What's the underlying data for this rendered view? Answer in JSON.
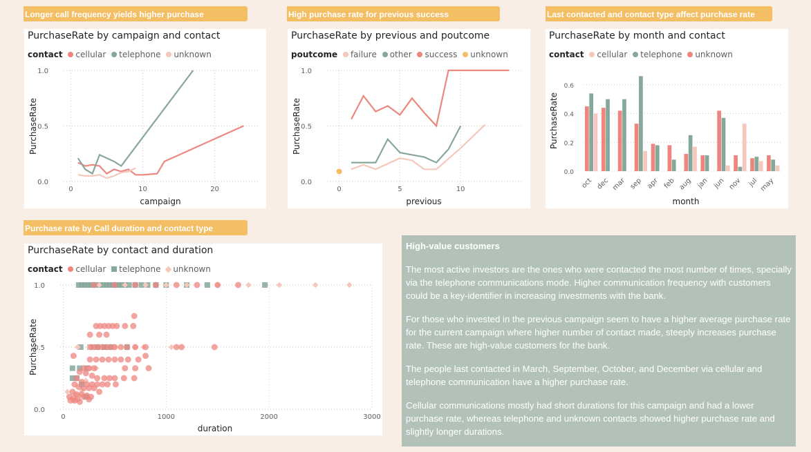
{
  "colors": {
    "cellular": "#ee8680",
    "telephone": "#85a89b",
    "unknown": "#f4c8bc",
    "failure": "#f4c8bc",
    "other": "#85a89b",
    "success": "#ee8680",
    "unknown_pout": "#f4be64",
    "tab": "#f4be64",
    "panel": "#b3c2b8"
  },
  "tabs": [
    "Longer call frequency yields higher purchase",
    "High purchase rate for previous success",
    "Last contacted and contact type affect purchase rate",
    "Purchase rate by Call duration and contact type"
  ],
  "insights": {
    "title": "High-value customers",
    "paragraphs": [
      "The most active investors are the ones who were contacted the most number of times, specially via the telephone communications mode. Higher communication frequency with customers could be a key-identifier in increasing investments with the bank.",
      "For those who invested in the previous campaign seem to have a higher average purchase rate for the current campaign where higher number of contact made, steeply increases purchase rate. These are high-value customers for the bank.",
      "The people last contacted in March, September, October, and December via cellular and telephone communication have a higher purchase rate.",
      "Cellular communications mostly had short durations for this campaign and had a lower purchase rate, whereas telephone and unknown contacts showed higher purchase rate and slightly longer durations."
    ]
  },
  "chart_data": [
    {
      "type": "line",
      "title": "PurchaseRate by campaign and contact",
      "legend_title": "contact",
      "xlabel": "campaign",
      "ylabel": "PurchaseRate",
      "xlim": [
        -1,
        26
      ],
      "ylim": [
        0,
        1
      ],
      "xticks": [
        0,
        10,
        20
      ],
      "yticks": [
        {
          "v": 0,
          "t": "0.0"
        },
        {
          "v": 0.5,
          "t": "0.5"
        },
        {
          "v": 1,
          "t": "1.0"
        }
      ],
      "series": [
        {
          "name": "cellular",
          "points": [
            [
              1,
              0.17
            ],
            [
              2,
              0.14
            ],
            [
              3,
              0.15
            ],
            [
              4,
              0.14
            ],
            [
              5,
              0.07
            ],
            [
              6,
              0.11
            ],
            [
              7,
              0.09
            ],
            [
              8,
              0.11
            ],
            [
              9,
              0.06
            ],
            [
              10,
              0.06
            ],
            [
              12,
              0.07
            ],
            [
              13,
              0.18
            ],
            [
              24,
              0.5
            ]
          ]
        },
        {
          "name": "telephone",
          "points": [
            [
              1,
              0.21
            ],
            [
              2,
              0.11
            ],
            [
              3,
              0.07
            ],
            [
              4,
              0.24
            ],
            [
              6,
              0.18
            ],
            [
              7,
              0.14
            ],
            [
              17,
              1.0
            ]
          ]
        },
        {
          "name": "unknown",
          "points": [
            [
              1,
              0.06
            ],
            [
              2,
              0.05
            ],
            [
              3,
              0.05
            ],
            [
              4,
              0.06
            ],
            [
              5,
              0.03
            ],
            [
              6,
              0.05
            ],
            [
              7,
              0.08
            ],
            [
              8,
              0.09
            ],
            [
              9,
              0.12
            ]
          ]
        }
      ]
    },
    {
      "type": "line",
      "title": "PurchaseRate by previous and poutcome",
      "legend_title": "poutcome",
      "xlabel": "previous",
      "ylabel": "PurchaseRate",
      "xlim": [
        -1,
        15
      ],
      "ylim": [
        0,
        1
      ],
      "xticks": [
        0,
        5,
        10
      ],
      "yticks": [
        {
          "v": 0,
          "t": "0.0"
        },
        {
          "v": 0.5,
          "t": "0.5"
        },
        {
          "v": 1,
          "t": "1.0"
        }
      ],
      "series": [
        {
          "name": "failure",
          "points": [
            [
              1,
              0.11
            ],
            [
              2,
              0.15
            ],
            [
              3,
              0.11
            ],
            [
              4,
              0.16
            ],
            [
              5,
              0.21
            ],
            [
              6,
              0.19
            ],
            [
              7,
              0.11
            ],
            [
              8,
              0.11
            ],
            [
              10,
              0.3
            ],
            [
              12,
              0.51
            ]
          ]
        },
        {
          "name": "other",
          "points": [
            [
              1,
              0.17
            ],
            [
              2,
              0.17
            ],
            [
              3,
              0.17
            ],
            [
              4,
              0.38
            ],
            [
              5,
              0.26
            ],
            [
              6,
              0.24
            ],
            [
              7,
              0.22
            ],
            [
              8,
              0.17
            ],
            [
              9,
              0.29
            ],
            [
              10,
              0.5
            ]
          ]
        },
        {
          "name": "success",
          "points": [
            [
              1,
              0.56
            ],
            [
              2,
              0.77
            ],
            [
              3,
              0.63
            ],
            [
              4,
              0.68
            ],
            [
              5,
              0.6
            ],
            [
              6,
              0.75
            ],
            [
              7,
              0.62
            ],
            [
              8,
              0.5
            ],
            [
              9,
              1.0
            ],
            [
              14,
              1.0
            ]
          ]
        },
        {
          "name": "unknown",
          "points": [
            [
              0,
              0.09
            ]
          ]
        }
      ]
    },
    {
      "type": "bar",
      "title": "PurchaseRate by month and contact",
      "legend_title": "contact",
      "xlabel": "month",
      "ylabel": "PurchaseRate",
      "ylim": [
        0,
        0.7
      ],
      "yticks": [
        {
          "v": 0,
          "t": "0.0"
        },
        {
          "v": 0.2,
          "t": "0.2"
        },
        {
          "v": 0.4,
          "t": "0.4"
        },
        {
          "v": 0.6,
          "t": "0.6"
        }
      ],
      "categories": [
        "oct",
        "dec",
        "mar",
        "sep",
        "apr",
        "feb",
        "aug",
        "jan",
        "jun",
        "nov",
        "jul",
        "may"
      ],
      "series": [
        {
          "name": "cellular",
          "values": [
            0.45,
            0.44,
            0.42,
            0.33,
            0.19,
            0.18,
            0.12,
            0.11,
            0.42,
            0.11,
            0.09,
            0.11
          ]
        },
        {
          "name": "telephone",
          "values": [
            0.54,
            0.5,
            0.5,
            0.66,
            0.18,
            0.08,
            0.25,
            0.11,
            0.37,
            0.03,
            0.1,
            0.08
          ]
        },
        {
          "name": "unknown",
          "values": [
            0.4,
            0,
            0,
            0.14,
            0,
            0,
            0.17,
            0,
            0.04,
            0.33,
            0.07,
            0.04
          ]
        }
      ]
    },
    {
      "type": "scatter",
      "title": "PurchaseRate by contact and duration",
      "legend_title": "contact",
      "xlabel": "duration",
      "ylabel": "PurchaseRate",
      "xlim": [
        -30,
        3000
      ],
      "ylim": [
        0,
        1
      ],
      "xticks": [
        {
          "v": 0,
          "t": "0"
        },
        {
          "v": 1000,
          "t": "1000"
        },
        {
          "v": 2000,
          "t": "2000"
        },
        {
          "v": 3000,
          "t": "3000"
        }
      ],
      "yticks": [
        {
          "v": 0,
          "t": "0.0"
        },
        {
          "v": 0.5,
          "t": "0.5"
        },
        {
          "v": 1,
          "t": "1.0"
        }
      ],
      "series": [
        {
          "name": "telephone",
          "points": [
            [
              150,
              1
            ],
            [
              180,
              1
            ],
            [
              210,
              1
            ],
            [
              240,
              1
            ],
            [
              270,
              1
            ],
            [
              300,
              1
            ],
            [
              330,
              1
            ],
            [
              360,
              1
            ],
            [
              390,
              1
            ],
            [
              420,
              1
            ],
            [
              450,
              1
            ],
            [
              480,
              1
            ],
            [
              510,
              1
            ],
            [
              540,
              1
            ],
            [
              570,
              1
            ],
            [
              600,
              1
            ],
            [
              640,
              1
            ],
            [
              700,
              1
            ],
            [
              760,
              1
            ],
            [
              820,
              1
            ],
            [
              900,
              1
            ],
            [
              1000,
              1
            ],
            [
              1200,
              1
            ],
            [
              1400,
              1
            ],
            [
              1960,
              1
            ],
            [
              170,
              0.5
            ],
            [
              260,
              0.5
            ],
            [
              330,
              0.5
            ],
            [
              400,
              0.5
            ],
            [
              460,
              0.5
            ],
            [
              620,
              0.5
            ],
            [
              90,
              0.33
            ],
            [
              160,
              0.33
            ],
            [
              230,
              0.33
            ],
            [
              90,
              0.25
            ],
            [
              130,
              0.25
            ],
            [
              180,
              0.2
            ],
            [
              220,
              0.1
            ]
          ]
        },
        {
          "name": "cellular",
          "points": [
            [
              300,
              1
            ],
            [
              500,
              1
            ],
            [
              700,
              1
            ],
            [
              900,
              1
            ],
            [
              1100,
              1
            ],
            [
              1300,
              1
            ],
            [
              1500,
              1
            ],
            [
              1700,
              1
            ],
            [
              320,
              0.67
            ],
            [
              360,
              0.67
            ],
            [
              400,
              0.67
            ],
            [
              440,
              0.67
            ],
            [
              480,
              0.67
            ],
            [
              520,
              0.67
            ],
            [
              600,
              0.67
            ],
            [
              680,
              0.67
            ],
            [
              260,
              0.6
            ],
            [
              350,
              0.6
            ],
            [
              420,
              0.6
            ],
            [
              270,
              0.5
            ],
            [
              300,
              0.5
            ],
            [
              340,
              0.5
            ],
            [
              380,
              0.5
            ],
            [
              420,
              0.5
            ],
            [
              460,
              0.5
            ],
            [
              500,
              0.5
            ],
            [
              560,
              0.5
            ],
            [
              620,
              0.5
            ],
            [
              700,
              0.5
            ],
            [
              800,
              0.5
            ],
            [
              1100,
              0.5
            ],
            [
              1150,
              0.5
            ],
            [
              1470,
              0.5
            ],
            [
              260,
              0.4
            ],
            [
              320,
              0.4
            ],
            [
              380,
              0.4
            ],
            [
              440,
              0.4
            ],
            [
              500,
              0.4
            ],
            [
              560,
              0.4
            ],
            [
              630,
              0.4
            ],
            [
              730,
              0.4
            ],
            [
              800,
              0.43
            ],
            [
              100,
              0.43
            ],
            [
              600,
              0.33
            ],
            [
              700,
              0.33
            ],
            [
              830,
              0.33
            ],
            [
              200,
              0.33
            ],
            [
              250,
              0.33
            ],
            [
              300,
              0.33
            ],
            [
              160,
              0.3
            ],
            [
              220,
              0.29
            ],
            [
              280,
              0.27
            ],
            [
              330,
              0.25
            ],
            [
              400,
              0.25
            ],
            [
              450,
              0.25
            ],
            [
              500,
              0.25
            ],
            [
              590,
              0.25
            ],
            [
              690,
              0.25
            ],
            [
              130,
              0.25
            ],
            [
              180,
              0.22
            ],
            [
              230,
              0.2
            ],
            [
              280,
              0.2
            ],
            [
              330,
              0.2
            ],
            [
              380,
              0.2
            ],
            [
              430,
              0.2
            ],
            [
              510,
              0.2
            ],
            [
              110,
              0.2
            ],
            [
              150,
              0.18
            ],
            [
              200,
              0.17
            ],
            [
              250,
              0.17
            ],
            [
              300,
              0.17
            ],
            [
              350,
              0.14
            ],
            [
              90,
              0.14
            ],
            [
              130,
              0.12
            ],
            [
              180,
              0.12
            ],
            [
              230,
              0.11
            ],
            [
              270,
              0.1
            ],
            [
              60,
              0.1
            ],
            [
              100,
              0.09
            ],
            [
              140,
              0.08
            ],
            [
              70,
              0.07
            ],
            [
              110,
              0.07
            ],
            [
              160,
              0.06
            ],
            [
              200,
              0.1
            ],
            [
              250,
              0.08
            ],
            [
              690,
              0.75
            ]
          ]
        },
        {
          "name": "unknown",
          "points": [
            [
              350,
              1
            ],
            [
              600,
              1
            ],
            [
              800,
              1
            ],
            [
              1000,
              1
            ],
            [
              1200,
              1
            ],
            [
              1500,
              1
            ],
            [
              1800,
              1
            ],
            [
              2100,
              1
            ],
            [
              2450,
              1
            ],
            [
              2780,
              1
            ],
            [
              140,
              0.5
            ],
            [
              250,
              0.5
            ],
            [
              500,
              0.5
            ],
            [
              700,
              0.5
            ],
            [
              780,
              0.5
            ],
            [
              1050,
              0.5
            ],
            [
              40,
              0.14
            ],
            [
              120,
              0.12
            ],
            [
              160,
              0.11
            ],
            [
              260,
              0.33
            ],
            [
              320,
              0.33
            ],
            [
              220,
              0.23
            ],
            [
              180,
              0.15
            ],
            [
              100,
              0.07
            ]
          ]
        }
      ]
    }
  ]
}
